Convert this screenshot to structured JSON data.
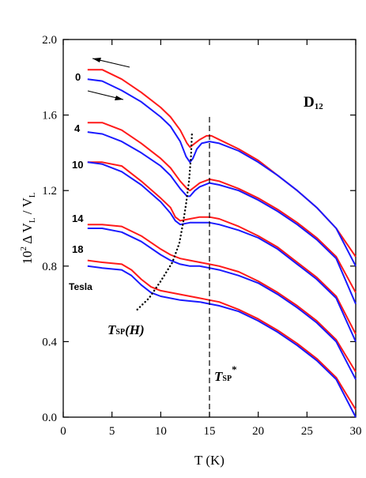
{
  "chart_data": {
    "type": "line",
    "title": "",
    "panel_label": {
      "main": "D",
      "sub": "12"
    },
    "xlabel": "T (K)",
    "ylabel": {
      "prefix": "10",
      "prefix_exp": "2",
      "text": "  Δ V",
      "sub1": "L",
      "mid": " / V",
      "sub2": "L"
    },
    "xlim": [
      0,
      30
    ],
    "ylim": [
      0.0,
      2.0
    ],
    "xticks": [
      0,
      5,
      10,
      15,
      20,
      25,
      30
    ],
    "yticks": [
      "0.0",
      "0.4",
      "0.8",
      "1.2",
      "1.6",
      "2.0"
    ],
    "colors": {
      "increasing": "#ff1a1a",
      "decreasing": "#1a1aff",
      "guide": "#000000"
    },
    "field_labels": [
      "0",
      "4",
      "10",
      "14",
      "18"
    ],
    "unit_label": "Tesla",
    "tsp_h_label": {
      "T": "T",
      "sub": "SP",
      "rest": "(H)"
    },
    "tsp_star_label": {
      "T": "T",
      "sub": "SP",
      "sup": "*"
    },
    "tsp_star_x": 15,
    "tsp_dotted_curve": [
      [
        7.6,
        0.57
      ],
      [
        8.8,
        0.63
      ],
      [
        10.0,
        0.72
      ],
      [
        11.2,
        0.82
      ],
      [
        11.9,
        0.92
      ],
      [
        12.3,
        1.03
      ],
      [
        12.6,
        1.13
      ],
      [
        12.9,
        1.25
      ],
      [
        13.1,
        1.38
      ],
      [
        13.2,
        1.5
      ]
    ],
    "series": [
      {
        "field": "0",
        "color": "red",
        "points": [
          [
            2.5,
            1.84
          ],
          [
            4,
            1.84
          ],
          [
            6,
            1.79
          ],
          [
            8,
            1.72
          ],
          [
            10,
            1.64
          ],
          [
            11,
            1.59
          ],
          [
            12,
            1.52
          ],
          [
            12.7,
            1.45
          ],
          [
            13,
            1.43
          ],
          [
            13.5,
            1.45
          ],
          [
            14,
            1.47
          ],
          [
            14.7,
            1.49
          ],
          [
            15.2,
            1.49
          ],
          [
            16,
            1.47
          ],
          [
            18,
            1.42
          ],
          [
            20,
            1.36
          ],
          [
            22,
            1.28
          ],
          [
            24,
            1.2
          ],
          [
            26,
            1.11
          ],
          [
            28,
            1.0
          ],
          [
            30,
            0.85
          ]
        ]
      },
      {
        "field": "0",
        "color": "blue",
        "points": [
          [
            2.5,
            1.79
          ],
          [
            4,
            1.78
          ],
          [
            6,
            1.73
          ],
          [
            8,
            1.67
          ],
          [
            10,
            1.59
          ],
          [
            11,
            1.54
          ],
          [
            12,
            1.46
          ],
          [
            12.6,
            1.38
          ],
          [
            13,
            1.35
          ],
          [
            13.3,
            1.37
          ],
          [
            13.7,
            1.42
          ],
          [
            14.2,
            1.45
          ],
          [
            15,
            1.46
          ],
          [
            16,
            1.45
          ],
          [
            18,
            1.41
          ],
          [
            20,
            1.35
          ],
          [
            22,
            1.28
          ],
          [
            24,
            1.2
          ],
          [
            26,
            1.11
          ],
          [
            28,
            1.0
          ],
          [
            30,
            0.8
          ]
        ]
      },
      {
        "field": "4",
        "color": "red",
        "points": [
          [
            2.5,
            1.56
          ],
          [
            4,
            1.56
          ],
          [
            6,
            1.52
          ],
          [
            8,
            1.45
          ],
          [
            10,
            1.37
          ],
          [
            11,
            1.32
          ],
          [
            12,
            1.25
          ],
          [
            12.7,
            1.21
          ],
          [
            13,
            1.2
          ],
          [
            13.5,
            1.22
          ],
          [
            14,
            1.24
          ],
          [
            15,
            1.26
          ],
          [
            16,
            1.25
          ],
          [
            18,
            1.21
          ],
          [
            20,
            1.16
          ],
          [
            22,
            1.1
          ],
          [
            24,
            1.03
          ],
          [
            26,
            0.95
          ],
          [
            28,
            0.85
          ],
          [
            30,
            0.66
          ]
        ]
      },
      {
        "field": "4",
        "color": "blue",
        "points": [
          [
            2.5,
            1.51
          ],
          [
            4,
            1.5
          ],
          [
            6,
            1.46
          ],
          [
            8,
            1.4
          ],
          [
            10,
            1.33
          ],
          [
            11,
            1.28
          ],
          [
            12,
            1.21
          ],
          [
            12.7,
            1.17
          ],
          [
            13,
            1.17
          ],
          [
            13.5,
            1.2
          ],
          [
            14,
            1.22
          ],
          [
            15,
            1.24
          ],
          [
            16,
            1.23
          ],
          [
            18,
            1.2
          ],
          [
            20,
            1.15
          ],
          [
            22,
            1.09
          ],
          [
            24,
            1.02
          ],
          [
            26,
            0.94
          ],
          [
            28,
            0.84
          ],
          [
            30,
            0.6
          ]
        ]
      },
      {
        "field": "10",
        "color": "red",
        "points": [
          [
            2.5,
            1.35
          ],
          [
            4,
            1.35
          ],
          [
            6,
            1.33
          ],
          [
            8,
            1.25
          ],
          [
            10,
            1.16
          ],
          [
            11,
            1.11
          ],
          [
            11.5,
            1.06
          ],
          [
            12,
            1.04
          ],
          [
            13,
            1.05
          ],
          [
            14,
            1.06
          ],
          [
            15,
            1.06
          ],
          [
            16,
            1.05
          ],
          [
            18,
            1.01
          ],
          [
            20,
            0.96
          ],
          [
            22,
            0.9
          ],
          [
            24,
            0.82
          ],
          [
            26,
            0.74
          ],
          [
            28,
            0.64
          ],
          [
            30,
            0.44
          ]
        ]
      },
      {
        "field": "10",
        "color": "blue",
        "points": [
          [
            2.5,
            1.35
          ],
          [
            4,
            1.34
          ],
          [
            6,
            1.3
          ],
          [
            8,
            1.23
          ],
          [
            10,
            1.14
          ],
          [
            11,
            1.08
          ],
          [
            11.5,
            1.04
          ],
          [
            12,
            1.02
          ],
          [
            13,
            1.03
          ],
          [
            14,
            1.03
          ],
          [
            15,
            1.03
          ],
          [
            16,
            1.02
          ],
          [
            18,
            0.99
          ],
          [
            20,
            0.95
          ],
          [
            22,
            0.89
          ],
          [
            24,
            0.81
          ],
          [
            26,
            0.73
          ],
          [
            28,
            0.63
          ],
          [
            30,
            0.4
          ]
        ]
      },
      {
        "field": "14",
        "color": "red",
        "points": [
          [
            2.5,
            1.02
          ],
          [
            4,
            1.02
          ],
          [
            6,
            1.01
          ],
          [
            8,
            0.96
          ],
          [
            10,
            0.89
          ],
          [
            11,
            0.86
          ],
          [
            12,
            0.84
          ],
          [
            13,
            0.83
          ],
          [
            14,
            0.82
          ],
          [
            15,
            0.81
          ],
          [
            16,
            0.8
          ],
          [
            18,
            0.77
          ],
          [
            20,
            0.72
          ],
          [
            22,
            0.66
          ],
          [
            24,
            0.59
          ],
          [
            26,
            0.51
          ],
          [
            28,
            0.41
          ],
          [
            30,
            0.24
          ]
        ]
      },
      {
        "field": "14",
        "color": "blue",
        "points": [
          [
            2.5,
            1.0
          ],
          [
            4,
            1.0
          ],
          [
            6,
            0.98
          ],
          [
            8,
            0.93
          ],
          [
            10,
            0.86
          ],
          [
            11,
            0.83
          ],
          [
            12,
            0.81
          ],
          [
            13,
            0.8
          ],
          [
            14,
            0.8
          ],
          [
            15,
            0.79
          ],
          [
            16,
            0.78
          ],
          [
            18,
            0.75
          ],
          [
            20,
            0.71
          ],
          [
            22,
            0.65
          ],
          [
            24,
            0.58
          ],
          [
            26,
            0.5
          ],
          [
            28,
            0.4
          ],
          [
            30,
            0.2
          ]
        ]
      },
      {
        "field": "18",
        "color": "red",
        "points": [
          [
            2.5,
            0.83
          ],
          [
            4,
            0.82
          ],
          [
            6,
            0.81
          ],
          [
            7,
            0.78
          ],
          [
            8,
            0.73
          ],
          [
            9,
            0.69
          ],
          [
            10,
            0.67
          ],
          [
            12,
            0.65
          ],
          [
            14,
            0.63
          ],
          [
            15,
            0.62
          ],
          [
            16,
            0.61
          ],
          [
            18,
            0.57
          ],
          [
            20,
            0.52
          ],
          [
            22,
            0.46
          ],
          [
            24,
            0.39
          ],
          [
            26,
            0.31
          ],
          [
            28,
            0.21
          ],
          [
            30,
            0.04
          ]
        ]
      },
      {
        "field": "18",
        "color": "blue",
        "points": [
          [
            2.5,
            0.8
          ],
          [
            4,
            0.79
          ],
          [
            6,
            0.78
          ],
          [
            7,
            0.75
          ],
          [
            8,
            0.7
          ],
          [
            9,
            0.66
          ],
          [
            10,
            0.64
          ],
          [
            12,
            0.62
          ],
          [
            14,
            0.61
          ],
          [
            15,
            0.6
          ],
          [
            16,
            0.59
          ],
          [
            18,
            0.56
          ],
          [
            20,
            0.51
          ],
          [
            22,
            0.45
          ],
          [
            24,
            0.38
          ],
          [
            26,
            0.3
          ],
          [
            28,
            0.2
          ],
          [
            30,
            0.0
          ]
        ]
      }
    ]
  }
}
